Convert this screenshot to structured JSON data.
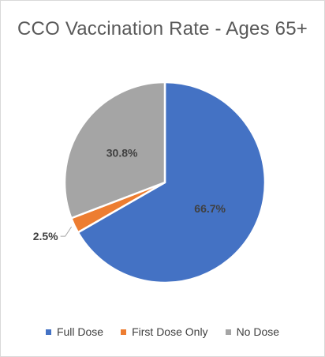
{
  "chart_data": {
    "type": "pie",
    "title": "CCO Vaccination Rate - Ages 65+",
    "categories": [
      "Full Dose",
      "First Dose Only",
      "No Dose"
    ],
    "values": [
      66.7,
      2.5,
      30.8
    ],
    "labels": [
      "66.7%",
      "2.5%",
      "30.8%"
    ],
    "colors": [
      "#4472C4",
      "#ED7D31",
      "#A5A5A5"
    ],
    "start_angle_deg": 0,
    "direction": "clockwise",
    "legend_position": "bottom"
  }
}
